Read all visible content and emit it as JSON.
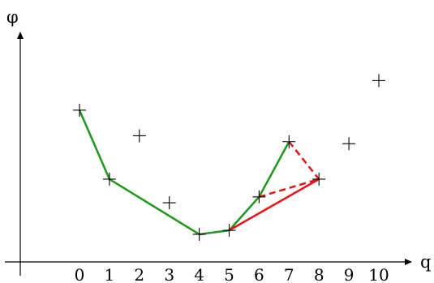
{
  "axes": {
    "x_label": "q",
    "y_label": "φ",
    "x_tick_labels": [
      "0",
      "1",
      "2",
      "3",
      "4",
      "5",
      "6",
      "7",
      "8",
      "9",
      "10"
    ]
  },
  "colors": {
    "green": "#1a9a1a",
    "red": "#ee1111",
    "marker": "#000000"
  },
  "points": [
    {
      "q": 0,
      "phi": 4.2
    },
    {
      "q": 1,
      "phi": 2.45
    },
    {
      "q": 2,
      "phi": 3.55
    },
    {
      "q": 3,
      "phi": 1.85
    },
    {
      "q": 4,
      "phi": 1.05
    },
    {
      "q": 5,
      "phi": 1.15
    },
    {
      "q": 6,
      "phi": 2.0
    },
    {
      "q": 7,
      "phi": 3.4
    },
    {
      "q": 8,
      "phi": 2.45
    },
    {
      "q": 9,
      "phi": 3.35
    },
    {
      "q": 10,
      "phi": 4.95
    }
  ],
  "paths": [
    {
      "style": "green-solid",
      "q": [
        0,
        1,
        4,
        5,
        6,
        7
      ]
    },
    {
      "style": "red-solid",
      "q": [
        5,
        8
      ]
    },
    {
      "style": "red-dashed",
      "q": [
        6,
        8
      ]
    },
    {
      "style": "red-dashed",
      "q": [
        7,
        8
      ]
    }
  ]
}
